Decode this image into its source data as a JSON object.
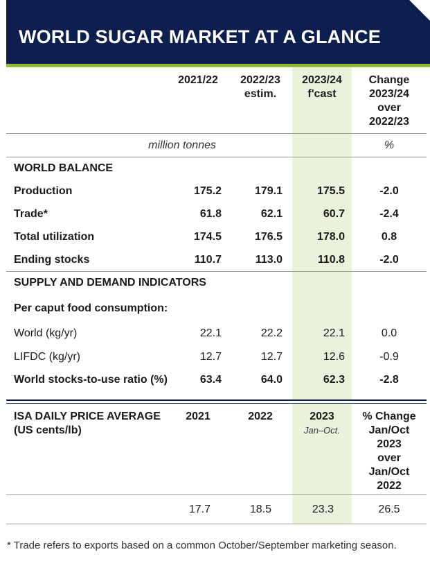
{
  "title": "WORLD SUGAR MARKET AT A GLANCE",
  "balance_table": {
    "headers": [
      "2021/22",
      "2022/23\nestim.",
      "2023/24\nf'cast",
      "Change\n2023/24\nover\n2022/23"
    ],
    "unit_main": "million tonnes",
    "unit_change": "%",
    "section_world_balance": "WORLD BALANCE",
    "world_balance_rows": [
      {
        "label": "Production",
        "values": [
          "175.2",
          "179.1",
          "175.5",
          "-2.0"
        ]
      },
      {
        "label": "Trade*",
        "values": [
          "61.8",
          "62.1",
          "60.7",
          "-2.4"
        ]
      },
      {
        "label": "Total utilization",
        "values": [
          "174.5",
          "176.5",
          "178.0",
          "0.8"
        ]
      },
      {
        "label": "Ending stocks",
        "values": [
          "110.7",
          "113.0",
          "110.8",
          "-2.0"
        ]
      }
    ],
    "section_indicators": "SUPPLY AND DEMAND INDICATORS",
    "subsection_per_caput": "Per caput food consumption:",
    "per_caput_rows": [
      {
        "label": "World (kg/yr)",
        "values": [
          "22.1",
          "22.2",
          "22.1",
          "0.0"
        ]
      },
      {
        "label": "LIFDC (kg/yr)",
        "values": [
          "12.7",
          "12.7",
          "12.6",
          "-0.9"
        ]
      }
    ],
    "stocks_to_use": {
      "label": "World stocks-to-use ratio (%)",
      "values": [
        "63.4",
        "64.0",
        "62.3",
        "-2.8"
      ]
    }
  },
  "price_table": {
    "label": "ISA DAILY PRICE AVERAGE\n(US cents/lb)",
    "headers": [
      "2021",
      "2022",
      "2023",
      "% Change\nJan/Oct\n2023\nover\nJan/Oct\n2022"
    ],
    "header_2023_sub": "Jan–Oct.",
    "values": [
      "17.7",
      "18.5",
      "23.3",
      "26.5"
    ]
  },
  "footnote": "* Trade refers to exports based on a common October/September marketing season.",
  "colors": {
    "banner": "#0c1f4f",
    "accent_green": "#8ebd3a",
    "highlight_column": "#eaf2dc"
  }
}
